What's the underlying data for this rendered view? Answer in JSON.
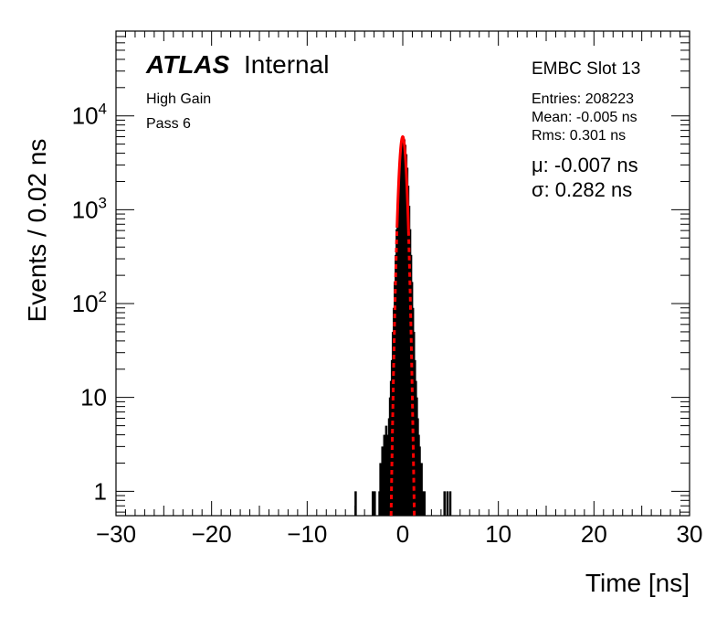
{
  "chart_data": {
    "type": "histogram",
    "xlabel": "Time [ns]",
    "ylabel": "Events / 0.02 ns",
    "xlim": [
      -30,
      30
    ],
    "ylim": [
      0.55,
      80000
    ],
    "y_scale": "log",
    "grid": false,
    "x_ticks": [
      -30,
      -20,
      -10,
      0,
      10,
      20,
      30
    ],
    "x_tick_labels": [
      "−30",
      "−20",
      "−10",
      "0",
      "10",
      "20",
      "30"
    ],
    "y_ticks": [
      1,
      10,
      100,
      1000,
      10000
    ],
    "y_tick_labels": [
      {
        "base": "1",
        "exp": ""
      },
      {
        "base": "10",
        "exp": ""
      },
      {
        "base": "10",
        "exp": "2"
      },
      {
        "base": "10",
        "exp": "3"
      },
      {
        "base": "10",
        "exp": "4"
      }
    ],
    "series": [
      {
        "style": "histogram",
        "color": "#000000",
        "x": [
          -5.0,
          -3.2,
          -3.0,
          -2.5,
          -2.4,
          -2.3,
          -2.2,
          -2.1,
          -2.0,
          -1.9,
          -1.8,
          -1.7,
          -1.6,
          -1.5,
          -1.4,
          -1.3,
          -1.2,
          -1.1,
          -1.0,
          -0.9,
          -0.8,
          -0.7,
          -0.6,
          -0.5,
          -0.4,
          -0.3,
          -0.2,
          -0.1,
          0.0,
          0.1,
          0.2,
          0.3,
          0.4,
          0.5,
          0.6,
          0.7,
          0.8,
          0.9,
          1.0,
          1.1,
          1.2,
          1.3,
          1.4,
          1.5,
          1.6,
          1.7,
          1.8,
          1.9,
          2.0,
          2.2,
          4.3,
          4.6,
          4.9
        ],
        "values": [
          1,
          1,
          1,
          1,
          2,
          1,
          3,
          2,
          4,
          2,
          5,
          3,
          4,
          6,
          10,
          15,
          25,
          50,
          90,
          170,
          330,
          620,
          1100,
          1800,
          2800,
          3900,
          4900,
          5600,
          6000,
          5600,
          4900,
          3900,
          2800,
          1800,
          1100,
          620,
          330,
          170,
          90,
          50,
          25,
          15,
          10,
          6,
          4,
          3,
          2,
          2,
          1,
          1,
          1,
          1,
          1
        ]
      },
      {
        "style": "gaussian-fit",
        "color": "#ff0000",
        "amplitude": 6000,
        "mean": -0.007,
        "sigma": 0.282,
        "fit_range": [
          -0.6,
          0.6
        ]
      }
    ]
  },
  "labels": {
    "atlas": "ATLAS",
    "internal": "Internal",
    "gain": "High Gain",
    "pass": "Pass 6",
    "slot": "EMBC Slot 13",
    "entries": "Entries: 208223",
    "mean": "Mean: -0.005 ns",
    "rms": "Rms: 0.301 ns",
    "mu": "μ: -0.007 ns",
    "sigma": "σ: 0.282 ns"
  }
}
